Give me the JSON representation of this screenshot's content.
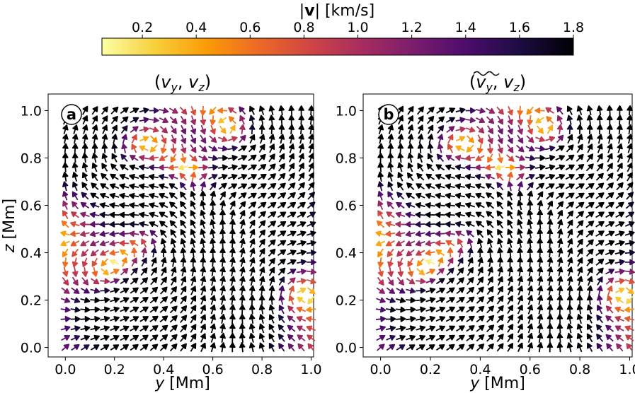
{
  "colorbar": {
    "label": "|v| [km/s]",
    "label_pre": "|",
    "label_v": "v",
    "label_post": "| [km/s]",
    "ticks": [
      0.2,
      0.4,
      0.6,
      0.8,
      1.0,
      1.2,
      1.4,
      1.6,
      1.8
    ],
    "range": [
      0.05,
      1.8
    ],
    "colormap": "inferno_r",
    "stops": [
      "#fcffa4",
      "#f7d03c",
      "#fb9b06",
      "#ed6925",
      "#cf4446",
      "#a52c60",
      "#781c6d",
      "#4a0c6b",
      "#1b0c41",
      "#000004"
    ]
  },
  "chart_data": [
    {
      "type": "quiver",
      "badge": "a",
      "title": "(v_y, v_z)",
      "title_parts": {
        "open": "(",
        "v1": "v",
        "s1": "y",
        "sep": ", ",
        "v2": "v",
        "s2": "z",
        "close": ")"
      },
      "xlabel": "y [Mm]",
      "xlabel_var": "y",
      "xlabel_unit": " [Mm]",
      "ylabel": "z [Mm]",
      "ylabel_var": "z",
      "ylabel_unit": " [Mm]",
      "xlim": [
        -0.07,
        1.01
      ],
      "ylim": [
        -0.04,
        1.07
      ],
      "xticks": [
        "0.0",
        "0.2",
        "0.4",
        "0.6",
        "0.8",
        "1.0"
      ],
      "yticks": [
        "0.0",
        "0.2",
        "0.4",
        "0.6",
        "0.8",
        "1.0"
      ],
      "grid_n": 26,
      "field": {
        "uniform": [
          0.5,
          1.3
        ],
        "vortices": [
          [
            0.42,
            0.42,
            0.55,
            0.22
          ],
          [
            0.26,
            0.85,
            -0.45,
            0.18
          ],
          [
            0.72,
            0.88,
            0.45,
            0.16
          ],
          [
            0.86,
            0.26,
            -0.5,
            0.18
          ],
          [
            0.15,
            0.26,
            0.35,
            0.14
          ],
          [
            0.62,
            0.6,
            -0.35,
            0.16
          ]
        ]
      }
    },
    {
      "type": "quiver",
      "badge": "b",
      "title": "(ṽ_y, v_z)",
      "title_parts": {
        "open": "(",
        "v1": "v",
        "s1": "y",
        "sep": ", ",
        "v2": "v",
        "s2": "z",
        "close": ")"
      },
      "xlabel": "y [Mm]",
      "xlabel_var": "y",
      "xlabel_unit": " [Mm]",
      "xlim": [
        -0.07,
        1.01
      ],
      "ylim": [
        -0.04,
        1.07
      ],
      "xticks": [
        "0.0",
        "0.2",
        "0.4",
        "0.6",
        "0.8",
        "1.0"
      ],
      "yticks": [
        "0.0",
        "0.2",
        "0.4",
        "0.6",
        "0.8",
        "1.0"
      ],
      "grid_n": 26,
      "field": {
        "uniform": [
          0.5,
          1.3
        ],
        "vortices": [
          [
            0.42,
            0.42,
            0.55,
            0.22
          ],
          [
            0.26,
            0.85,
            -0.45,
            0.18
          ],
          [
            0.72,
            0.88,
            0.45,
            0.16
          ],
          [
            0.86,
            0.26,
            -0.5,
            0.18
          ],
          [
            0.15,
            0.26,
            0.35,
            0.14
          ],
          [
            0.62,
            0.6,
            -0.35,
            0.16
          ]
        ]
      }
    }
  ]
}
